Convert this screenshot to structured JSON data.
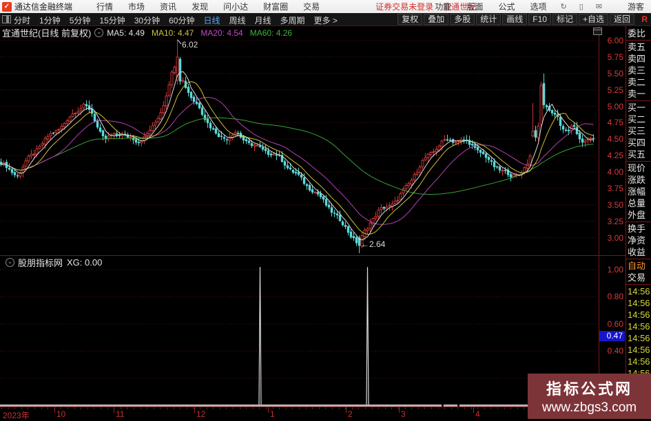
{
  "titlebar": {
    "app_name": "通达信金融终端",
    "menus": [
      "行情",
      "市场",
      "资讯",
      "发现",
      "问小达",
      "财富圈",
      "交易"
    ],
    "login_status": "证券交易未登录",
    "stock_link": "宜通世纪",
    "right_menus": [
      "功能",
      "版面",
      "公式",
      "选项"
    ],
    "icon_glyphs": [
      {
        "name": "feedback-icon",
        "glyph": "↻"
      },
      {
        "name": "phone-icon",
        "glyph": "▯"
      },
      {
        "name": "mail-icon",
        "glyph": "✉"
      }
    ],
    "user": "游客"
  },
  "toolbar": {
    "periods": [
      "分时",
      "1分钟",
      "5分钟",
      "15分钟",
      "30分钟",
      "60分钟",
      "日线",
      "周线",
      "月线",
      "多周期",
      "更多 >"
    ],
    "active_period": "日线",
    "right_buttons": [
      "复权",
      "叠加",
      "多股",
      "统计",
      "画线",
      "F10",
      "标记",
      "+自选",
      "返回"
    ],
    "r_badge": "R"
  },
  "chart": {
    "title": "宜通世纪(日线 前复权)",
    "ma_labels": [
      {
        "text": "MA5: 4.49",
        "color": "#e2e2e2"
      },
      {
        "text": "MA10: 4.47",
        "color": "#cfc23a"
      },
      {
        "text": "MA20: 4.54",
        "color": "#c24cc2"
      },
      {
        "text": "MA60: 4.26",
        "color": "#3cb43c"
      }
    ],
    "y_ticks": [
      "6.00",
      "5.75",
      "5.50",
      "5.25",
      "5.00",
      "4.75",
      "4.50",
      "4.25",
      "4.00",
      "3.75",
      "3.50",
      "3.25",
      "3.00"
    ],
    "high_label": "6.02",
    "low_label": "←2.64"
  },
  "indicator": {
    "title": "股朋指标网",
    "value_label": "XG: 0.00",
    "y_ticks": [
      "1.00",
      "0.80",
      "0.60",
      "0.40"
    ],
    "cursor_value": "0.47"
  },
  "xaxis": {
    "labels": [
      {
        "text": "2023年",
        "x": 4,
        "major": false
      },
      {
        "text": "10",
        "x": 82,
        "major": true
      },
      {
        "text": "11",
        "x": 168,
        "major": true
      },
      {
        "text": "12",
        "x": 285,
        "major": true
      },
      {
        "text": "1",
        "x": 392,
        "major": true
      },
      {
        "text": "2",
        "x": 505,
        "major": true
      },
      {
        "text": "3",
        "x": 582,
        "major": true
      },
      {
        "text": "4",
        "x": 690,
        "major": true
      }
    ]
  },
  "sidebar": {
    "sections": [
      [
        "委比"
      ],
      [
        "卖五",
        "卖四",
        "卖三",
        "卖二",
        "卖一"
      ],
      [
        "买一",
        "买二",
        "买三",
        "买四",
        "买五"
      ],
      [
        "现价",
        "涨跌",
        "涨幅",
        "总量",
        "外盘"
      ],
      [
        "换手",
        "净资",
        "收益"
      ]
    ],
    "actions": [
      "自动",
      "交易"
    ],
    "times": [
      "14:56",
      "14:56",
      "14:56",
      "14:56",
      "14:56",
      "14:56",
      "14:56",
      "14:56"
    ]
  },
  "promo": {
    "line1": "指标公式网",
    "line2": "www.zbgs3.com"
  },
  "chart_data": {
    "type": "candlestick",
    "symbol": "宜通世纪",
    "period": "日线 前复权",
    "price_axis": {
      "min": 3.0,
      "max": 6.0,
      "step": 0.25
    },
    "ma_values": {
      "MA5": 4.49,
      "MA10": 4.47,
      "MA20": 4.54,
      "MA60": 4.26
    },
    "extremes": {
      "high": 6.02,
      "low": 2.64
    },
    "candle_count": 216,
    "anchors": [
      [
        0,
        4.12
      ],
      [
        14,
        4.02
      ],
      [
        26,
        3.98
      ],
      [
        38,
        4.18
      ],
      [
        52,
        4.32
      ],
      [
        66,
        4.45
      ],
      [
        80,
        4.62
      ],
      [
        95,
        4.78
      ],
      [
        110,
        4.95
      ],
      [
        122,
        5.0
      ],
      [
        132,
        4.88
      ],
      [
        142,
        4.66
      ],
      [
        152,
        4.5
      ],
      [
        164,
        4.58
      ],
      [
        176,
        4.62
      ],
      [
        188,
        4.5
      ],
      [
        200,
        4.42
      ],
      [
        212,
        4.55
      ],
      [
        222,
        4.68
      ],
      [
        232,
        4.92
      ],
      [
        240,
        5.15
      ],
      [
        248,
        5.45
      ],
      [
        258,
        5.72
      ],
      [
        264,
        5.42
      ],
      [
        272,
        5.22
      ],
      [
        280,
        5.05
      ],
      [
        290,
        5.0
      ],
      [
        298,
        4.85
      ],
      [
        308,
        4.66
      ],
      [
        318,
        4.55
      ],
      [
        330,
        4.5
      ],
      [
        342,
        4.56
      ],
      [
        354,
        4.5
      ],
      [
        366,
        4.44
      ],
      [
        378,
        4.38
      ],
      [
        392,
        4.28
      ],
      [
        406,
        4.18
      ],
      [
        420,
        4.05
      ],
      [
        434,
        3.95
      ],
      [
        448,
        3.8
      ],
      [
        462,
        3.62
      ],
      [
        476,
        3.45
      ],
      [
        490,
        3.3
      ],
      [
        504,
        3.16
      ],
      [
        514,
        3.0
      ],
      [
        521,
        2.88
      ],
      [
        528,
        3.05
      ],
      [
        538,
        3.22
      ],
      [
        550,
        3.38
      ],
      [
        564,
        3.5
      ],
      [
        578,
        3.62
      ],
      [
        592,
        3.8
      ],
      [
        606,
        4.0
      ],
      [
        620,
        4.22
      ],
      [
        634,
        4.4
      ],
      [
        648,
        4.52
      ],
      [
        660,
        4.48
      ],
      [
        672,
        4.44
      ],
      [
        684,
        4.4
      ],
      [
        696,
        4.32
      ],
      [
        708,
        4.22
      ],
      [
        720,
        4.1
      ],
      [
        732,
        3.98
      ],
      [
        742,
        3.9
      ],
      [
        754,
        3.96
      ],
      [
        764,
        4.08
      ],
      [
        773,
        4.35
      ],
      [
        781,
        4.7
      ],
      [
        788,
        5.3
      ],
      [
        792,
        5.02
      ],
      [
        800,
        4.86
      ],
      [
        808,
        4.88
      ],
      [
        816,
        4.62
      ],
      [
        824,
        4.58
      ],
      [
        832,
        4.7
      ],
      [
        840,
        4.58
      ],
      [
        848,
        4.48
      ],
      [
        856,
        4.5
      ],
      [
        864,
        4.52
      ]
    ],
    "overrides": {
      "30": {
        "h": 5.06
      },
      "64": {
        "o": 5.4,
        "c": 5.75,
        "h": 6.02
      },
      "65": {
        "o": 5.72,
        "c": 5.38
      },
      "130": {
        "o": 3.0,
        "c": 2.88,
        "l": 2.64
      },
      "193": {
        "o": 4.55,
        "c": 4.62,
        "h": 5.05
      },
      "196": {
        "o": 4.72,
        "c": 5.32
      },
      "197": {
        "o": 5.35,
        "c": 5.02,
        "h": 5.5
      }
    },
    "ma_periods": [
      5,
      10,
      20,
      60
    ],
    "indicator": {
      "name": "XG",
      "last": 0.0,
      "ticks": [
        1.0,
        0.8,
        0.6,
        0.4
      ],
      "cursor": 0.47,
      "signals": [
        {
          "index": 94,
          "value": 1.02
        },
        {
          "index": 133,
          "value": 1.02
        }
      ]
    },
    "colors": {
      "up": "#c73838",
      "down": "#5cd8d8",
      "ma5": "#dcdcdc",
      "ma10": "#cfc23a",
      "ma20": "#b342b3",
      "ma60": "#36a436",
      "grid": "#611212",
      "border": "#7e1619",
      "axis_text": "#dd3c3c",
      "marker_text": "#d8d8d8",
      "signal": "#dcdcdc",
      "cursor_bg": "#1515cc"
    }
  }
}
